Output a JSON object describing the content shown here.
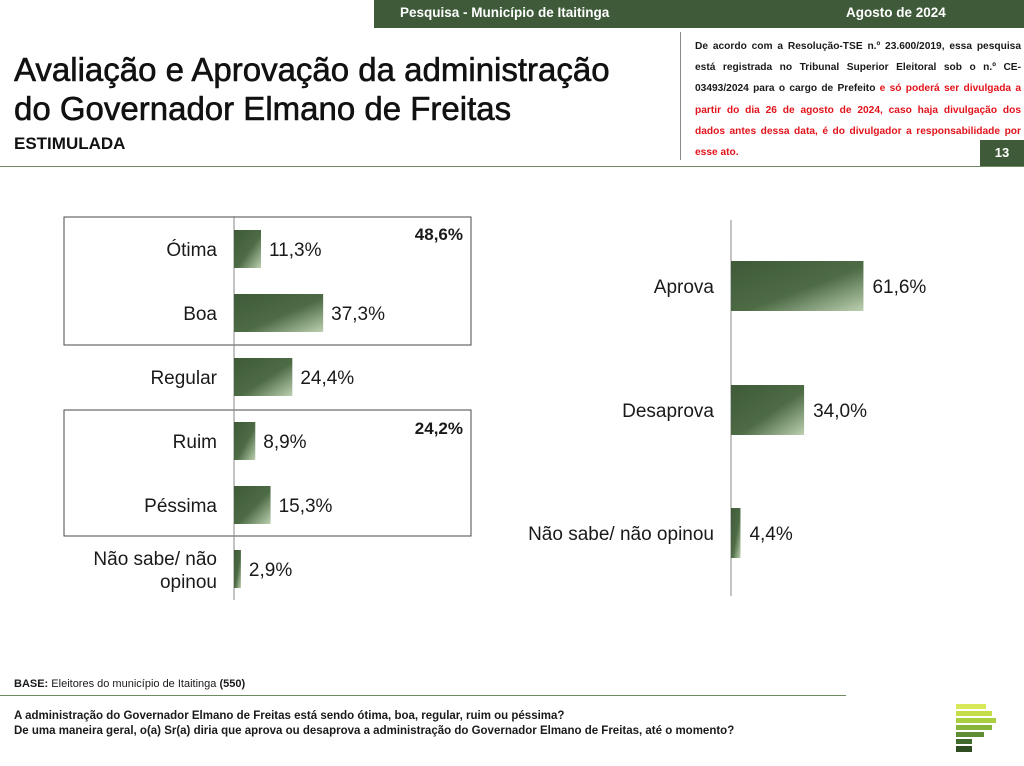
{
  "header": {
    "survey_label": "Pesquisa - Município de Itaitinga",
    "date_label": "Agosto de 2024",
    "page_number": "13"
  },
  "title_line1": "Avaliação e Aprovação da administração",
  "title_line2": "do Governador Elmano de Freitas",
  "subtitle": "ESTIMULADA",
  "notice": {
    "black": "De acordo com a Resolução-TSE n.º 23.600/2019, essa pesquisa está registrada no Tribunal Superior Eleitoral sob o n.º CE-03493/2024 para o cargo de Prefeito",
    "red": " e só poderá ser divulgada a partir do dia 26 de agosto de 2024, caso haja divulgação dos dados antes dessa data, é do divulgador a responsabilidade por esse ato."
  },
  "chart_data": [
    {
      "type": "bar",
      "orientation": "horizontal",
      "title": "",
      "categories": [
        "Ótima",
        "Boa",
        "Regular",
        "Ruim",
        "Péssima",
        "Não sabe/ não opinou"
      ],
      "values": [
        11.3,
        37.3,
        24.4,
        8.9,
        15.3,
        2.9
      ],
      "value_labels": [
        "11,3%",
        "37,3%",
        "24,4%",
        "8,9%",
        "15,3%",
        "2,9%"
      ],
      "groups": [
        {
          "members": [
            "Ótima",
            "Boa"
          ],
          "total_label": "48,6%"
        },
        {
          "members": [
            "Ruim",
            "Péssima"
          ],
          "total_label": "24,2%"
        }
      ],
      "color": "#3e5a38"
    },
    {
      "type": "bar",
      "orientation": "horizontal",
      "title": "",
      "categories": [
        "Aprova",
        "Desaprova",
        "Não sabe/ não opinou"
      ],
      "values": [
        61.6,
        34.0,
        4.4
      ],
      "value_labels": [
        "61,6%",
        "34,0%",
        "4,4%"
      ],
      "color": "#3e5a38"
    }
  ],
  "base": {
    "label": "BASE:",
    "text": " Eleitores do município de Itaitinga ",
    "count": "(550)"
  },
  "questions": [
    "A administração do Governador Elmano de Freitas está sendo ótima, boa, regular, ruim ou péssima?",
    "De uma maneira geral, o(a) Sr(a) diria que aprova ou desaprova a administração do Governador Elmano de Freitas, até o momento?"
  ]
}
